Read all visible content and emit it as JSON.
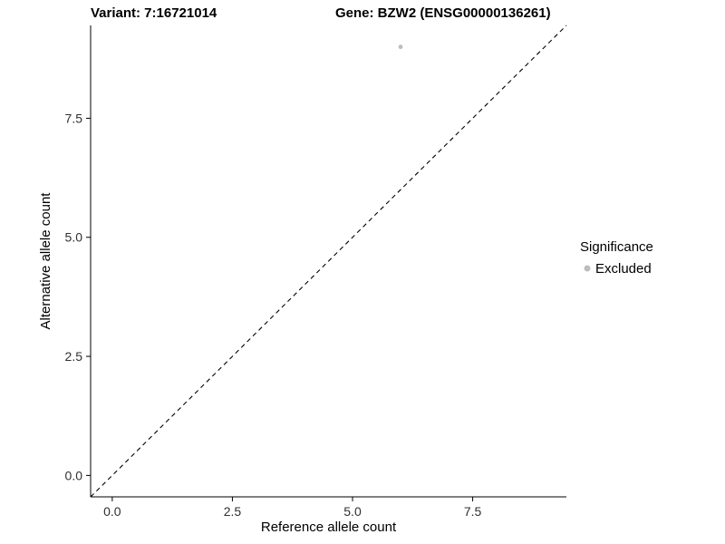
{
  "chart_data": {
    "type": "scatter",
    "title_left": "Variant: 7:16721014",
    "title_right": "Gene: BZW2 (ENSG00000136261)",
    "xlabel": "Reference allele count",
    "ylabel": "Alternative allele count",
    "xlim": [
      -0.45,
      9.45
    ],
    "ylim": [
      -0.45,
      9.45
    ],
    "xticks": [
      0,
      2.5,
      5,
      7.5
    ],
    "xtick_labels": [
      "0.0",
      "2.5",
      "5.0",
      "7.5"
    ],
    "yticks": [
      0,
      2.5,
      5,
      7.5
    ],
    "ytick_labels": [
      "0.0",
      "2.5",
      "5.0",
      "7.5"
    ],
    "grid": false,
    "points": [
      {
        "x": 6,
        "y": 9,
        "series": "Excluded"
      }
    ],
    "point_color": "#bdbdbd",
    "reference_line": {
      "slope": 1,
      "intercept": 0,
      "style": "dashed",
      "color": "#000000"
    },
    "legend": {
      "title": "Significance",
      "position": "right",
      "entries": [
        {
          "label": "Excluded",
          "color": "#bdbdbd"
        }
      ]
    },
    "axis_text_color": "#303030"
  }
}
